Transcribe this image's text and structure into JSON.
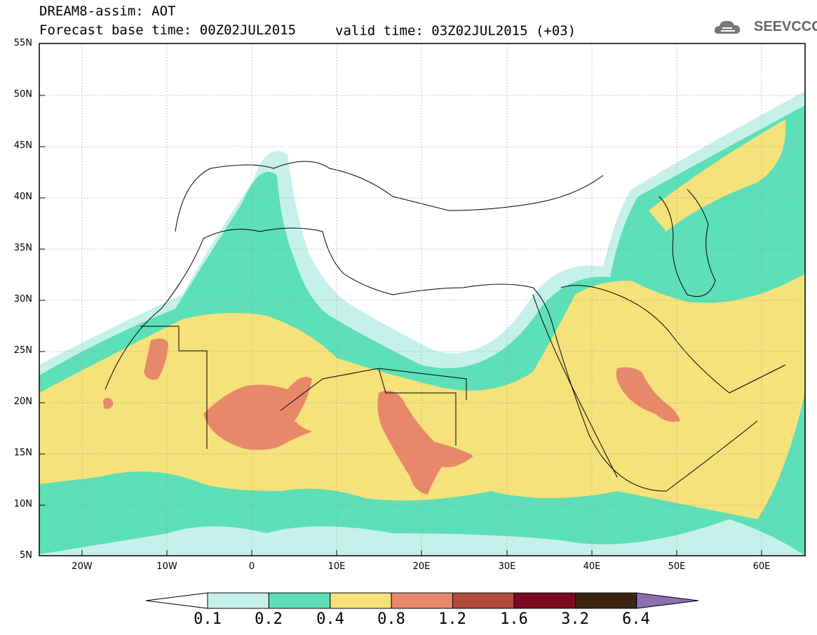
{
  "header": {
    "line1": "DREAM8-assim: AOT",
    "line2": "Forecast base time: 00Z02JUL2015",
    "valid": "valid time: 03Z02JUL2015 (+03)",
    "logo": "SEEVCCC"
  },
  "map": {
    "lat_labels": [
      "55N",
      "50N",
      "45N",
      "40N",
      "35N",
      "30N",
      "25N",
      "20N",
      "15N",
      "10N",
      "5N"
    ],
    "lon_labels": [
      "20W",
      "10W",
      "0",
      "10E",
      "20E",
      "30E",
      "40E",
      "50E",
      "60E"
    ],
    "extent": {
      "lon": [
        -25,
        65
      ],
      "lat": [
        5,
        55
      ]
    }
  },
  "colorbar": {
    "levels": [
      "0.1",
      "0.2",
      "0.4",
      "0.8",
      "1.2",
      "1.6",
      "3.2",
      "6.4"
    ],
    "colors": [
      "#c6f1ea",
      "#5ddfb7",
      "#f6e27a",
      "#e8886a",
      "#b24a3d",
      "#7e0822",
      "#3c2414",
      "#8e6fb3"
    ]
  }
}
